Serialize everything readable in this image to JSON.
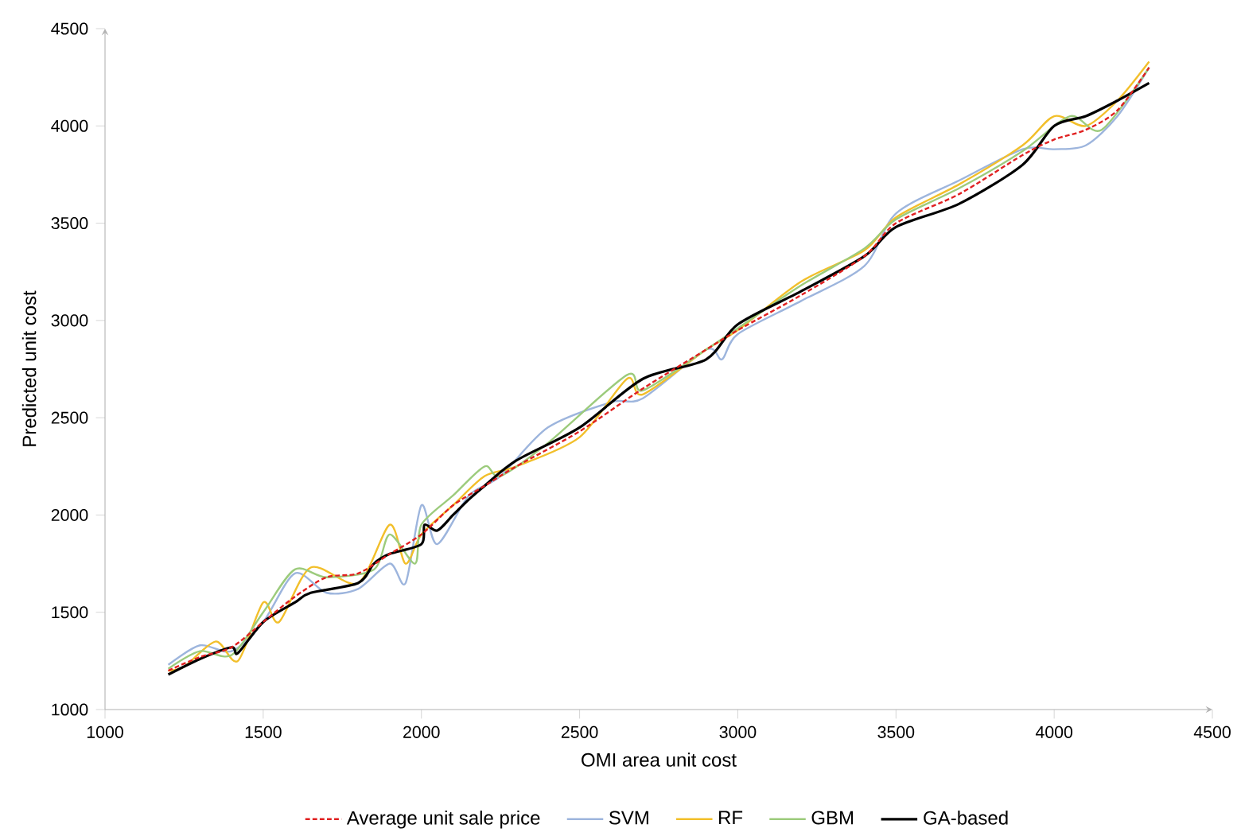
{
  "chart_data": {
    "type": "line",
    "xlabel": "OMI area unit cost",
    "ylabel": "Predicted unit cost",
    "xlim": [
      1000,
      4500
    ],
    "ylim": [
      1000,
      4500
    ],
    "xticks": [
      1000,
      1500,
      2000,
      2500,
      3000,
      3500,
      4000,
      4500
    ],
    "yticks": [
      1000,
      1500,
      2000,
      2500,
      3000,
      3500,
      4000,
      4500
    ],
    "grid": false,
    "legend": "bottom",
    "marker": "none",
    "series": [
      {
        "name": "Average unit sale price",
        "color": "#e02020",
        "line_style": "dashed",
        "x": [
          1200,
          1300,
          1400,
          1500,
          1600,
          1700,
          1800,
          1900,
          2000,
          2100,
          2200,
          2300,
          2500,
          2700,
          2900,
          3000,
          3200,
          3400,
          3500,
          3700,
          3900,
          4000,
          4100,
          4200,
          4300
        ],
        "values": [
          1200,
          1270,
          1320,
          1450,
          1580,
          1680,
          1700,
          1800,
          1900,
          2050,
          2150,
          2250,
          2430,
          2650,
          2850,
          2950,
          3130,
          3330,
          3500,
          3650,
          3850,
          3930,
          3980,
          4080,
          4300
        ]
      },
      {
        "name": "SVM",
        "color": "#9db5dd",
        "line_style": "solid",
        "x": [
          1200,
          1300,
          1400,
          1500,
          1600,
          1700,
          1800,
          1900,
          1950,
          2000,
          2050,
          2150,
          2250,
          2400,
          2600,
          2700,
          2900,
          2950,
          3000,
          3200,
          3400,
          3500,
          3700,
          3900,
          4000,
          4100,
          4200,
          4300
        ],
        "values": [
          1230,
          1330,
          1300,
          1450,
          1700,
          1600,
          1620,
          1750,
          1650,
          2050,
          1850,
          2100,
          2200,
          2450,
          2580,
          2600,
          2850,
          2800,
          2930,
          3100,
          3280,
          3550,
          3720,
          3880,
          3880,
          3900,
          4050,
          4300
        ]
      },
      {
        "name": "RF",
        "color": "#f2bf2a",
        "line_style": "solid",
        "x": [
          1200,
          1250,
          1350,
          1420,
          1500,
          1550,
          1650,
          1800,
          1900,
          1950,
          2000,
          2100,
          2200,
          2300,
          2500,
          2650,
          2700,
          2900,
          3000,
          3200,
          3400,
          3500,
          3700,
          3900,
          4000,
          4100,
          4200,
          4300
        ],
        "values": [
          1200,
          1220,
          1350,
          1250,
          1550,
          1450,
          1730,
          1650,
          1950,
          1750,
          1900,
          2050,
          2200,
          2250,
          2400,
          2700,
          2620,
          2850,
          2950,
          3200,
          3360,
          3530,
          3700,
          3900,
          4050,
          4000,
          4130,
          4330
        ]
      },
      {
        "name": "GBM",
        "color": "#9ccb7c",
        "line_style": "solid",
        "x": [
          1200,
          1300,
          1400,
          1500,
          1600,
          1700,
          1850,
          1900,
          1980,
          2000,
          2100,
          2200,
          2250,
          2400,
          2650,
          2700,
          2900,
          3000,
          3200,
          3400,
          3500,
          3700,
          3900,
          4050,
          4150,
          4300
        ],
        "values": [
          1210,
          1300,
          1280,
          1500,
          1720,
          1680,
          1720,
          1900,
          1750,
          1950,
          2100,
          2250,
          2200,
          2370,
          2720,
          2640,
          2850,
          2960,
          3180,
          3370,
          3520,
          3680,
          3870,
          4050,
          3980,
          4300
        ]
      },
      {
        "name": "GA-based",
        "color": "#000000",
        "line_style": "solid",
        "x": [
          1200,
          1300,
          1400,
          1420,
          1500,
          1600,
          1650,
          1800,
          1850,
          1900,
          2000,
          2010,
          2050,
          2100,
          2150,
          2200,
          2300,
          2500,
          2700,
          2900,
          3000,
          3200,
          3400,
          3500,
          3700,
          3900,
          4000,
          4100,
          4200,
          4300
        ],
        "values": [
          1180,
          1260,
          1320,
          1290,
          1450,
          1550,
          1600,
          1650,
          1750,
          1800,
          1850,
          1950,
          1920,
          2000,
          2080,
          2150,
          2280,
          2450,
          2700,
          2800,
          2980,
          3150,
          3330,
          3480,
          3600,
          3800,
          4000,
          4050,
          4130,
          4220
        ]
      }
    ]
  }
}
